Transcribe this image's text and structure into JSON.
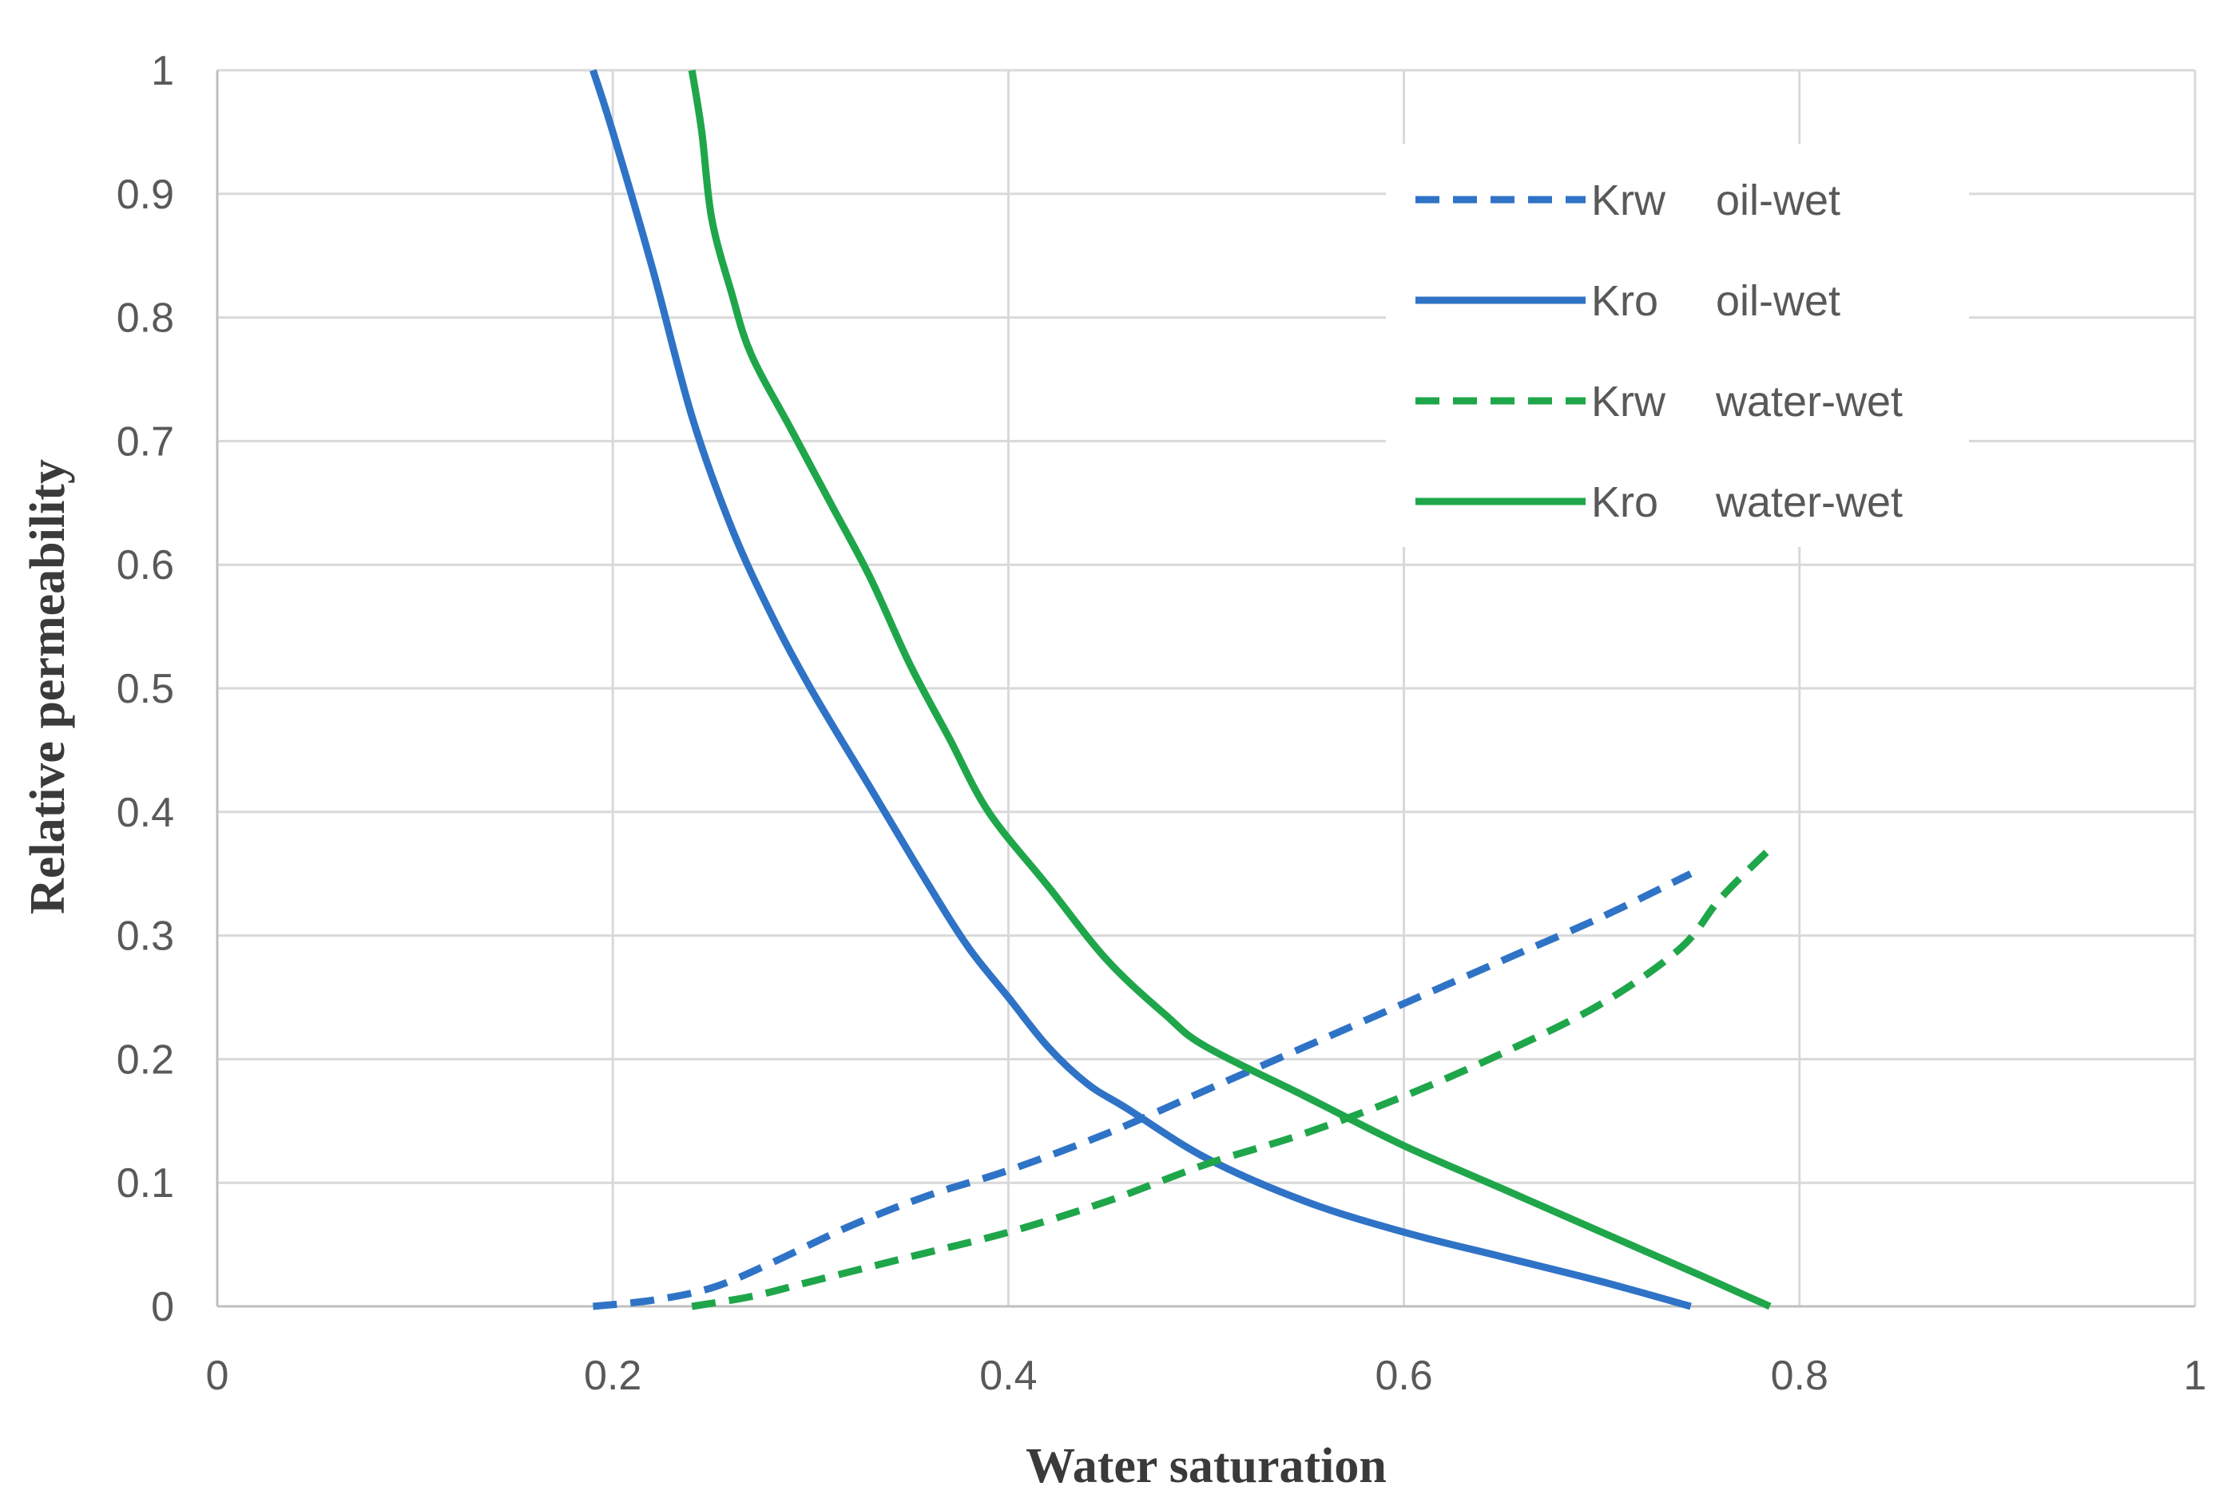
{
  "chart_data": {
    "type": "line",
    "title": "",
    "xlabel": "Water saturation",
    "ylabel": "Relative permeability",
    "xlim": [
      0,
      1
    ],
    "ylim": [
      0,
      1
    ],
    "x_ticks": [
      "0",
      "0.2",
      "0.4",
      "0.6",
      "0.8",
      "1"
    ],
    "y_ticks": [
      "0",
      "0.1",
      "0.2",
      "0.3",
      "0.4",
      "0.5",
      "0.6",
      "0.7",
      "0.8",
      "0.9",
      "1"
    ],
    "grid": true,
    "legend_position": "top-right",
    "series": [
      {
        "name": "Krw",
        "wettability": "oil-wet",
        "color": "#2F73C6",
        "dash": true,
        "points": [
          [
            0.19,
            0.0
          ],
          [
            0.22,
            0.005
          ],
          [
            0.25,
            0.015
          ],
          [
            0.28,
            0.035
          ],
          [
            0.32,
            0.065
          ],
          [
            0.36,
            0.09
          ],
          [
            0.4,
            0.11
          ],
          [
            0.45,
            0.14
          ],
          [
            0.5,
            0.175
          ],
          [
            0.55,
            0.21
          ],
          [
            0.6,
            0.245
          ],
          [
            0.65,
            0.28
          ],
          [
            0.7,
            0.315
          ],
          [
            0.745,
            0.35
          ]
        ]
      },
      {
        "name": "Kro",
        "wettability": "oil-wet",
        "color": "#2F73C6",
        "dash": false,
        "points": [
          [
            0.19,
            1.0
          ],
          [
            0.2,
            0.95
          ],
          [
            0.22,
            0.84
          ],
          [
            0.24,
            0.72
          ],
          [
            0.26,
            0.63
          ],
          [
            0.28,
            0.56
          ],
          [
            0.3,
            0.5
          ],
          [
            0.33,
            0.42
          ],
          [
            0.36,
            0.34
          ],
          [
            0.38,
            0.29
          ],
          [
            0.4,
            0.25
          ],
          [
            0.42,
            0.21
          ],
          [
            0.44,
            0.18
          ],
          [
            0.46,
            0.16
          ],
          [
            0.5,
            0.12
          ],
          [
            0.55,
            0.085
          ],
          [
            0.6,
            0.06
          ],
          [
            0.65,
            0.04
          ],
          [
            0.7,
            0.02
          ],
          [
            0.745,
            0.0
          ]
        ]
      },
      {
        "name": "Krw",
        "wettability": "water-wet",
        "color": "#1FA64A",
        "dash": true,
        "points": [
          [
            0.24,
            0.0
          ],
          [
            0.27,
            0.008
          ],
          [
            0.3,
            0.02
          ],
          [
            0.35,
            0.04
          ],
          [
            0.4,
            0.06
          ],
          [
            0.45,
            0.085
          ],
          [
            0.5,
            0.115
          ],
          [
            0.55,
            0.14
          ],
          [
            0.6,
            0.17
          ],
          [
            0.65,
            0.205
          ],
          [
            0.7,
            0.245
          ],
          [
            0.74,
            0.29
          ],
          [
            0.76,
            0.33
          ],
          [
            0.785,
            0.37
          ]
        ]
      },
      {
        "name": "Kro",
        "wettability": "water-wet",
        "color": "#1FA64A",
        "dash": false,
        "points": [
          [
            0.24,
            1.0
          ],
          [
            0.245,
            0.95
          ],
          [
            0.25,
            0.88
          ],
          [
            0.26,
            0.82
          ],
          [
            0.27,
            0.77
          ],
          [
            0.29,
            0.71
          ],
          [
            0.31,
            0.65
          ],
          [
            0.33,
            0.59
          ],
          [
            0.35,
            0.52
          ],
          [
            0.37,
            0.46
          ],
          [
            0.39,
            0.4
          ],
          [
            0.42,
            0.34
          ],
          [
            0.45,
            0.28
          ],
          [
            0.48,
            0.235
          ],
          [
            0.5,
            0.21
          ],
          [
            0.55,
            0.17
          ],
          [
            0.6,
            0.13
          ],
          [
            0.65,
            0.095
          ],
          [
            0.7,
            0.06
          ],
          [
            0.75,
            0.025
          ],
          [
            0.785,
            0.0
          ]
        ]
      }
    ]
  }
}
